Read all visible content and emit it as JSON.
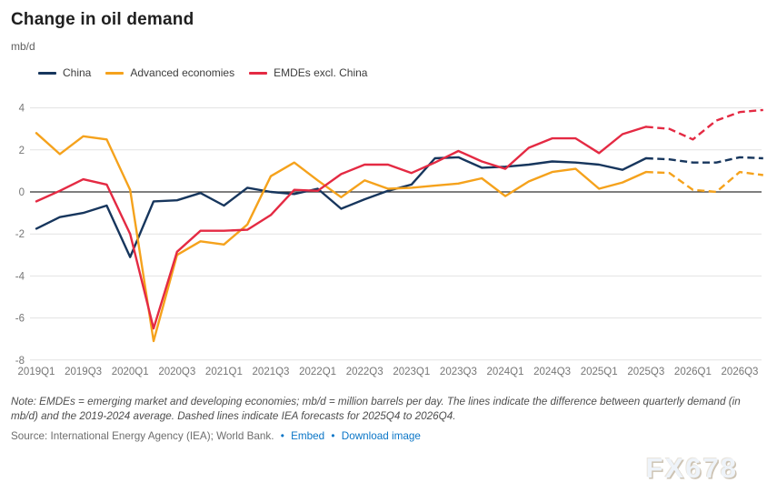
{
  "title": "Change in oil demand",
  "unit_label": "mb/d",
  "note": "Note: EMDEs = emerging market and developing economies; mb/d = million barrels per day. The lines indicate the difference between quarterly demand (in mb/d) and the 2019-2024 average. Dashed lines indicate IEA forecasts for 2025Q4 to 2026Q4.",
  "source": {
    "text": "Source: International Energy Agency (IEA); World Bank.",
    "separator": "•",
    "links": [
      "Embed",
      "Download image"
    ]
  },
  "watermark": "FX678",
  "colors": {
    "zero_line": "#333333",
    "gridline": "#e2e2e2",
    "tick_text": "#767676"
  },
  "chart_data": {
    "type": "line",
    "x": [
      "2019Q1",
      "2019Q2",
      "2019Q3",
      "2019Q4",
      "2020Q1",
      "2020Q2",
      "2020Q3",
      "2020Q4",
      "2021Q1",
      "2021Q2",
      "2021Q3",
      "2021Q4",
      "2022Q1",
      "2022Q2",
      "2022Q3",
      "2022Q4",
      "2023Q1",
      "2023Q2",
      "2023Q3",
      "2023Q4",
      "2024Q1",
      "2024Q2",
      "2024Q3",
      "2024Q4",
      "2025Q1",
      "2025Q2",
      "2025Q3",
      "2025Q4",
      "2026Q1",
      "2026Q2",
      "2026Q3",
      "2026Q4"
    ],
    "x_tick_every": 2,
    "ylabel": "mb/d",
    "ylim": [
      -8,
      4
    ],
    "yticks": [
      4,
      2,
      0,
      -2,
      -4,
      -6,
      -8
    ],
    "grid": true,
    "legend_position": "top",
    "forecast_start_index": 27,
    "forecast_style": "dashed",
    "series": [
      {
        "name": "China",
        "color": "#17365d",
        "values": [
          -1.75,
          -1.2,
          -1.0,
          -0.65,
          -3.1,
          -0.45,
          -0.4,
          -0.05,
          -0.65,
          0.2,
          0.0,
          -0.1,
          0.15,
          -0.8,
          -0.35,
          0.05,
          0.35,
          1.6,
          1.65,
          1.15,
          1.2,
          1.3,
          1.45,
          1.4,
          1.3,
          1.05,
          1.6,
          1.55,
          1.4,
          1.4,
          1.65,
          1.6
        ]
      },
      {
        "name": "Advanced economies",
        "color": "#f5a21c",
        "values": [
          2.8,
          1.8,
          2.65,
          2.5,
          0.1,
          -7.1,
          -3.0,
          -2.35,
          -2.5,
          -1.55,
          0.75,
          1.4,
          0.55,
          -0.25,
          0.55,
          0.15,
          0.2,
          0.3,
          0.4,
          0.65,
          -0.2,
          0.5,
          0.95,
          1.1,
          0.15,
          0.45,
          0.95,
          0.9,
          0.1,
          0.0,
          0.95,
          0.8
        ]
      },
      {
        "name": "EMDEs excl. China",
        "color": "#e42a43",
        "values": [
          -0.45,
          0.05,
          0.6,
          0.35,
          -2.0,
          -6.5,
          -2.85,
          -1.85,
          -1.85,
          -1.8,
          -1.1,
          0.1,
          0.05,
          0.85,
          1.3,
          1.3,
          0.9,
          1.4,
          1.95,
          1.45,
          1.1,
          2.1,
          2.55,
          2.55,
          1.85,
          2.75,
          3.1,
          3.0,
          2.5,
          3.4,
          3.8,
          3.9
        ]
      }
    ]
  }
}
